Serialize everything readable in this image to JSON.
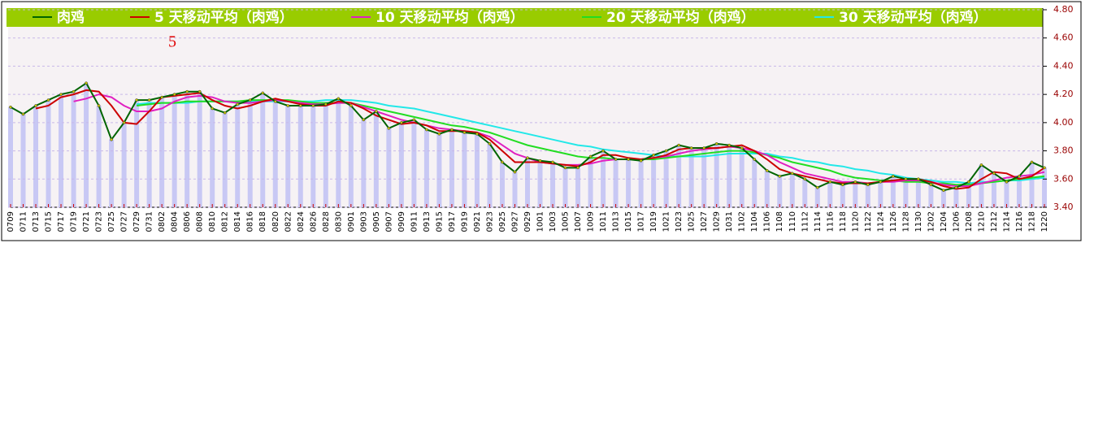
{
  "chart_data": {
    "type": "line",
    "annotation": "5",
    "categories": [
      "0709",
      "0711",
      "0713",
      "0715",
      "0717",
      "0719",
      "0721",
      "0723",
      "0725",
      "0727",
      "0729",
      "0731",
      "0802",
      "0804",
      "0806",
      "0808",
      "0810",
      "0812",
      "0814",
      "0816",
      "0818",
      "0820",
      "0822",
      "0824",
      "0826",
      "0828",
      "0830",
      "0901",
      "0903",
      "0905",
      "0907",
      "0909",
      "0911",
      "0913",
      "0915",
      "0917",
      "0919",
      "0921",
      "0923",
      "0925",
      "0927",
      "0929",
      "1001",
      "1003",
      "1005",
      "1007",
      "1009",
      "1011",
      "1013",
      "1015",
      "1017",
      "1019",
      "1021",
      "1023",
      "1025",
      "1027",
      "1029",
      "1031",
      "1102",
      "1104",
      "1106",
      "1108",
      "1110",
      "1112",
      "1114",
      "1116",
      "1118",
      "1120",
      "1122",
      "1124",
      "1126",
      "1128",
      "1130",
      "1202",
      "1204",
      "1206",
      "1208",
      "1210",
      "1212",
      "1214",
      "1216",
      "1218",
      "1220"
    ],
    "series": [
      {
        "name": "肉鸡",
        "color": "#006400",
        "values": [
          4.11,
          4.06,
          4.12,
          4.16,
          4.2,
          4.22,
          4.28,
          4.12,
          3.88,
          4.0,
          4.16,
          4.16,
          4.18,
          4.2,
          4.22,
          4.22,
          4.1,
          4.07,
          4.13,
          4.16,
          4.21,
          4.15,
          4.12,
          4.12,
          4.12,
          4.13,
          4.17,
          4.12,
          4.02,
          4.08,
          3.96,
          4.0,
          4.02,
          3.95,
          3.92,
          3.95,
          3.93,
          3.92,
          3.85,
          3.72,
          3.65,
          3.75,
          3.73,
          3.72,
          3.68,
          3.68,
          3.76,
          3.8,
          3.74,
          3.74,
          3.73,
          3.77,
          3.8,
          3.84,
          3.82,
          3.82,
          3.85,
          3.84,
          3.82,
          3.74,
          3.66,
          3.62,
          3.64,
          3.6,
          3.54,
          3.58,
          3.56,
          3.58,
          3.56,
          3.58,
          3.62,
          3.6,
          3.6,
          3.56,
          3.52,
          3.54,
          3.58,
          3.7,
          3.64,
          3.58,
          3.62,
          3.72,
          3.68
        ]
      },
      {
        "name": "5 天移动平均（肉鸡）",
        "color": "#cc0000",
        "values": [
          null,
          null,
          4.1,
          4.12,
          4.18,
          4.2,
          4.23,
          4.22,
          4.12,
          4.0,
          3.99,
          4.08,
          4.18,
          4.19,
          4.2,
          4.21,
          4.16,
          4.12,
          4.1,
          4.12,
          4.15,
          4.17,
          4.15,
          4.13,
          4.12,
          4.12,
          4.15,
          4.14,
          4.1,
          4.05,
          4.02,
          3.99,
          4.0,
          3.98,
          3.94,
          3.94,
          3.94,
          3.93,
          3.88,
          3.8,
          3.72,
          3.72,
          3.72,
          3.71,
          3.7,
          3.69,
          3.72,
          3.77,
          3.77,
          3.75,
          3.74,
          3.75,
          3.77,
          3.81,
          3.82,
          3.82,
          3.82,
          3.83,
          3.84,
          3.8,
          3.74,
          3.67,
          3.64,
          3.62,
          3.6,
          3.58,
          3.57,
          3.57,
          3.57,
          3.58,
          3.59,
          3.6,
          3.6,
          3.58,
          3.55,
          3.53,
          3.54,
          3.6,
          3.65,
          3.64,
          3.6,
          3.62,
          3.68
        ]
      },
      {
        "name": "10 天移动平均（肉鸡）",
        "color": "#e020c0",
        "values": [
          null,
          null,
          null,
          null,
          null,
          4.15,
          4.17,
          4.2,
          4.18,
          4.12,
          4.08,
          4.08,
          4.1,
          4.15,
          4.18,
          4.19,
          4.18,
          4.15,
          4.14,
          4.14,
          4.15,
          4.16,
          4.15,
          4.14,
          4.13,
          4.13,
          4.14,
          4.14,
          4.11,
          4.08,
          4.05,
          4.02,
          4.0,
          3.98,
          3.96,
          3.95,
          3.94,
          3.93,
          3.9,
          3.84,
          3.78,
          3.75,
          3.72,
          3.71,
          3.7,
          3.7,
          3.71,
          3.73,
          3.74,
          3.74,
          3.74,
          3.75,
          3.76,
          3.78,
          3.8,
          3.81,
          3.82,
          3.83,
          3.82,
          3.8,
          3.77,
          3.72,
          3.68,
          3.64,
          3.62,
          3.6,
          3.58,
          3.58,
          3.57,
          3.58,
          3.58,
          3.59,
          3.59,
          3.58,
          3.56,
          3.55,
          3.55,
          3.57,
          3.59,
          3.61,
          3.62,
          3.63,
          3.65
        ]
      },
      {
        "name": "20 天移动平均（肉鸡）",
        "color": "#22dd22",
        "values": [
          null,
          null,
          null,
          null,
          null,
          null,
          null,
          null,
          null,
          null,
          4.12,
          4.13,
          4.14,
          4.14,
          4.15,
          4.15,
          4.15,
          4.15,
          4.15,
          4.16,
          4.16,
          4.16,
          4.16,
          4.15,
          4.14,
          4.14,
          4.14,
          4.14,
          4.12,
          4.1,
          4.08,
          4.06,
          4.04,
          4.02,
          4.0,
          3.98,
          3.97,
          3.95,
          3.93,
          3.9,
          3.87,
          3.84,
          3.82,
          3.8,
          3.78,
          3.76,
          3.75,
          3.75,
          3.74,
          3.74,
          3.74,
          3.74,
          3.75,
          3.76,
          3.77,
          3.78,
          3.79,
          3.8,
          3.8,
          3.79,
          3.77,
          3.75,
          3.72,
          3.7,
          3.68,
          3.66,
          3.63,
          3.61,
          3.6,
          3.59,
          3.59,
          3.58,
          3.58,
          3.57,
          3.57,
          3.56,
          3.56,
          3.57,
          3.58,
          3.59,
          3.6,
          3.61,
          3.62
        ]
      },
      {
        "name": "30 天移动平均（肉鸡）",
        "color": "#22e8e8",
        "values": [
          null,
          null,
          null,
          null,
          null,
          null,
          null,
          null,
          null,
          null,
          4.13,
          4.14,
          4.14,
          4.14,
          4.14,
          4.15,
          4.15,
          4.15,
          4.15,
          4.15,
          4.15,
          4.15,
          4.15,
          4.15,
          4.15,
          4.16,
          4.16,
          4.16,
          4.15,
          4.14,
          4.12,
          4.11,
          4.1,
          4.08,
          4.06,
          4.04,
          4.02,
          4.0,
          3.98,
          3.96,
          3.94,
          3.92,
          3.9,
          3.88,
          3.86,
          3.84,
          3.83,
          3.81,
          3.8,
          3.79,
          3.78,
          3.77,
          3.76,
          3.76,
          3.76,
          3.76,
          3.77,
          3.78,
          3.78,
          3.78,
          3.78,
          3.76,
          3.75,
          3.73,
          3.72,
          3.7,
          3.69,
          3.67,
          3.66,
          3.64,
          3.63,
          3.61,
          3.6,
          3.59,
          3.58,
          3.58,
          3.57,
          3.58,
          3.58,
          3.59,
          3.59,
          3.6,
          3.61
        ]
      }
    ],
    "ylim": [
      3.4,
      4.8
    ],
    "yticks": [
      {
        "value": 3.4,
        "label": "3.40"
      },
      {
        "value": 3.6,
        "label": "3.60"
      },
      {
        "value": 3.8,
        "label": "3.80"
      },
      {
        "value": 4.0,
        "label": "4.00"
      },
      {
        "value": 4.2,
        "label": "4.20"
      },
      {
        "value": 4.4,
        "label": "4.40"
      },
      {
        "value": 4.6,
        "label": "4.60"
      },
      {
        "value": 4.8,
        "label": "4.80"
      }
    ],
    "grid": true,
    "legend": "top",
    "bar_color": "#c8c8f4"
  }
}
